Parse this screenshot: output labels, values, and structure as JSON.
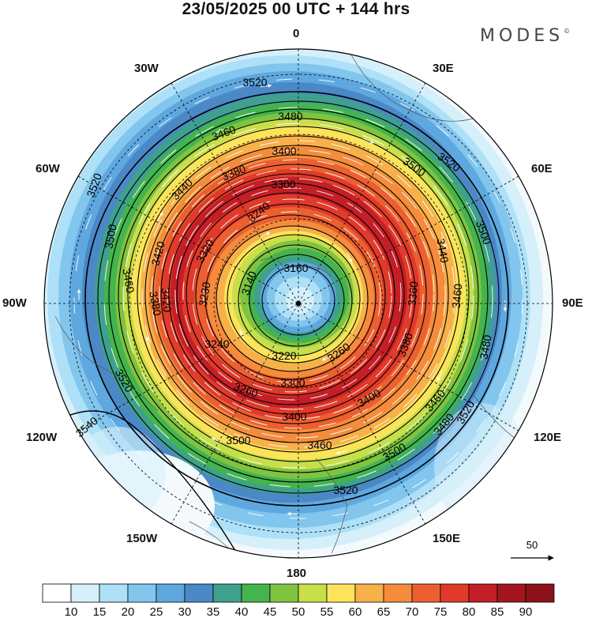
{
  "header": {
    "title": "23/05/2025  00 UTC  + 144 hrs",
    "brand": "MODES",
    "brand_mark": "©"
  },
  "map": {
    "projection": "polar-stereographic-north",
    "fill_variable_units_hint": "",
    "longitude_labels": {
      "n": "0",
      "ne30": "30E",
      "ne60": "60E",
      "e": "90E",
      "se120": "120E",
      "se150": "150E",
      "s": "180",
      "sw150": "150W",
      "sw120": "120W",
      "w": "90W",
      "nw60": "60W",
      "nw30": "30W"
    },
    "contour_labels": [
      {
        "id": "c1",
        "text": "3520"
      },
      {
        "id": "c2",
        "text": "3480"
      },
      {
        "id": "c3",
        "text": "3460"
      },
      {
        "id": "c4",
        "text": "3400"
      },
      {
        "id": "c5",
        "text": "3380"
      },
      {
        "id": "c6",
        "text": "3300"
      },
      {
        "id": "c7",
        "text": "3240"
      },
      {
        "id": "c8",
        "text": "3160"
      },
      {
        "id": "c9",
        "text": "3140"
      },
      {
        "id": "c10",
        "text": "3230"
      },
      {
        "id": "c11",
        "text": "3320"
      },
      {
        "id": "c12",
        "text": "3420"
      },
      {
        "id": "c13",
        "text": "3440"
      },
      {
        "id": "c14",
        "text": "3500"
      },
      {
        "id": "c15",
        "text": "3520"
      },
      {
        "id": "c16",
        "text": "3460"
      },
      {
        "id": "c17",
        "text": "3380"
      },
      {
        "id": "c18",
        "text": "3420"
      },
      {
        "id": "c19",
        "text": "3520"
      },
      {
        "id": "c20",
        "text": "3540"
      },
      {
        "id": "c21",
        "text": "3240"
      },
      {
        "id": "c22",
        "text": "3220"
      },
      {
        "id": "c23",
        "text": "3260"
      },
      {
        "id": "c24",
        "text": "3300"
      },
      {
        "id": "c25",
        "text": "3260"
      },
      {
        "id": "c26",
        "text": "3400"
      },
      {
        "id": "c27",
        "text": "3400"
      },
      {
        "id": "c28",
        "text": "3380"
      },
      {
        "id": "c29",
        "text": "3460"
      },
      {
        "id": "c30",
        "text": "3500"
      },
      {
        "id": "c31",
        "text": "3460"
      },
      {
        "id": "c32",
        "text": "3500"
      },
      {
        "id": "c33",
        "text": "3480"
      },
      {
        "id": "c34",
        "text": "3520"
      },
      {
        "id": "c35",
        "text": "3520"
      },
      {
        "id": "c36",
        "text": "3440"
      },
      {
        "id": "c37",
        "text": "3500"
      },
      {
        "id": "c38",
        "text": "3460"
      },
      {
        "id": "c39",
        "text": "3480"
      },
      {
        "id": "c40",
        "text": "3360"
      },
      {
        "id": "c41",
        "text": "3500"
      },
      {
        "id": "c42",
        "text": "3520"
      }
    ],
    "wind_reference": {
      "label": "50"
    }
  },
  "legend": {
    "colors": [
      "#ffffff",
      "#d5f0fb",
      "#aee0f7",
      "#82c6ee",
      "#5fa8df",
      "#4b88c6",
      "#3fa08e",
      "#44b44e",
      "#80c341",
      "#c7df4a",
      "#fbe35a",
      "#f8b04a",
      "#f48c3c",
      "#ec5f30",
      "#e03a2a",
      "#c41f26",
      "#a3161f",
      "#8a1218"
    ],
    "tick_labels": [
      "10",
      "15",
      "20",
      "25",
      "30",
      "35",
      "40",
      "45",
      "50",
      "55",
      "60",
      "65",
      "70",
      "75",
      "80",
      "85",
      "90"
    ]
  }
}
